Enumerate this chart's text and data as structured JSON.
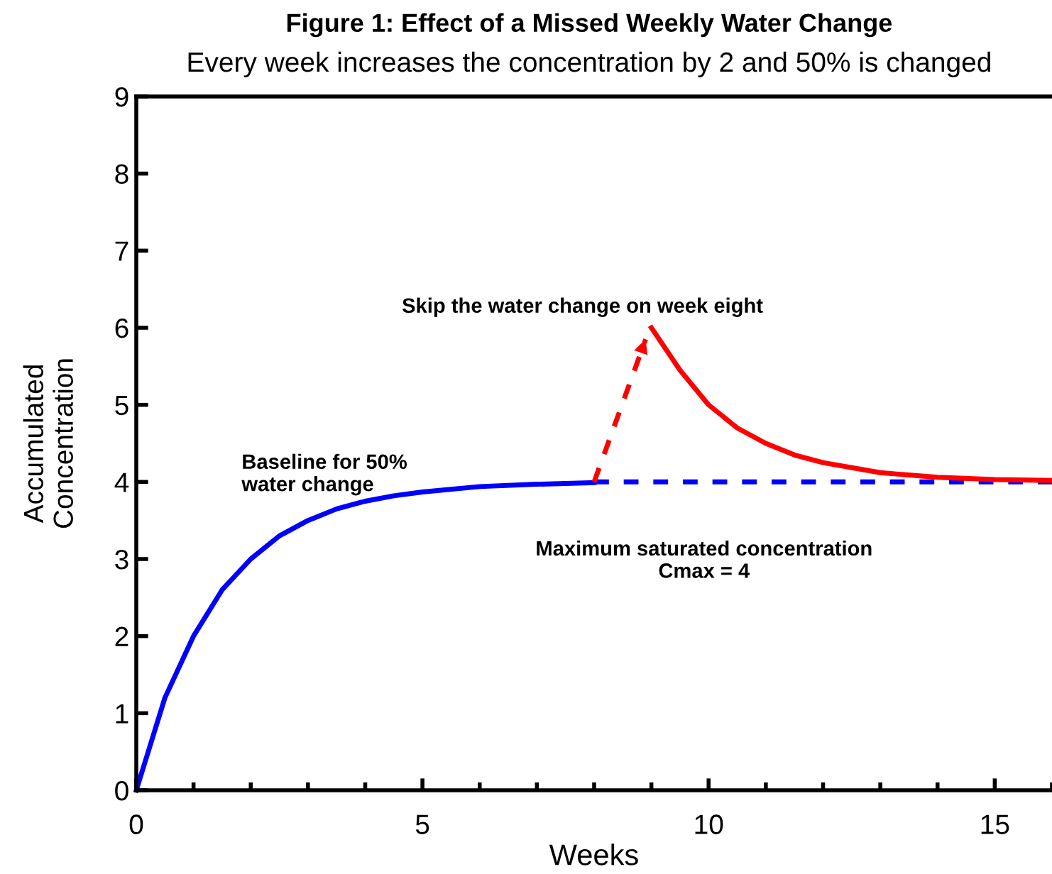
{
  "chart_data": {
    "type": "line",
    "title": "Figure 1: Effect of a Missed Weekly Water Change",
    "subtitle": "Every week increases the concentration by 2 and 50% is changed",
    "xlabel": "Weeks",
    "ylabel": "Accumulated\nConcentration",
    "xlim": [
      0,
      16
    ],
    "xticks": [
      0,
      5,
      10,
      15
    ],
    "ylim": [
      0,
      9
    ],
    "yticks": [
      0,
      1,
      2,
      3,
      4,
      5,
      6,
      7,
      8,
      9
    ],
    "grid": false,
    "legend": false,
    "marker": "none",
    "series": [
      {
        "color": "#0000ff",
        "line_style": "solid",
        "x": [
          0,
          0.5,
          1,
          1.5,
          2,
          2.5,
          3,
          3.5,
          4,
          4.5,
          5,
          6,
          7,
          8
        ],
        "values": [
          0,
          1.2,
          2.0,
          2.6,
          3.0,
          3.3,
          3.5,
          3.65,
          3.75,
          3.82,
          3.87,
          3.94,
          3.97,
          3.99
        ]
      },
      {
        "color": "#0000ff",
        "line_style": "dashed",
        "x": [
          8,
          16
        ],
        "values": [
          4,
          4
        ]
      },
      {
        "color": "#ff0000",
        "line_style": "dashed",
        "x": [
          8,
          8.9
        ],
        "values": [
          4,
          5.85
        ]
      },
      {
        "color": "#ff0000",
        "line_style": "solid",
        "x": [
          9,
          9.5,
          10,
          10.5,
          11,
          11.5,
          12,
          13,
          14,
          15,
          16
        ],
        "values": [
          6,
          5.45,
          5.0,
          4.7,
          4.5,
          4.35,
          4.25,
          4.12,
          4.06,
          4.03,
          4.02
        ]
      }
    ],
    "annotations": [
      "Skip the water change on week eight",
      "Baseline for 50%\nwater change",
      "Maximum saturated concentration\nCmax = 4"
    ]
  }
}
